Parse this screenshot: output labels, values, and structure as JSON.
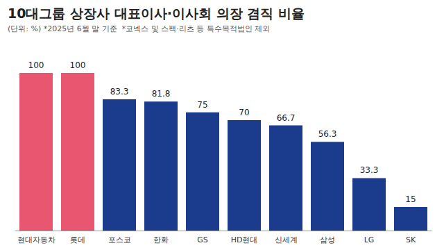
{
  "chart_data": {
    "type": "bar",
    "title": "10대그룹 상장사 대표이사·이사회 의장 겸직 비율",
    "subtitle": "(단위: %) *2025년 6월 말 기준  *코넥스 및 스팩·리츠 등 특수목적법인 제외",
    "categories": [
      "현대자동차",
      "롯데",
      "포스코",
      "한화",
      "GS",
      "HD현대",
      "신세계",
      "삼성",
      "LG",
      "SK"
    ],
    "values": [
      100,
      100,
      83.3,
      81.8,
      75,
      70,
      66.7,
      56.3,
      33.3,
      15
    ],
    "colors": [
      "#e8566f",
      "#e8566f",
      "#1b3c8c",
      "#1b3c8c",
      "#1b3c8c",
      "#1b3c8c",
      "#1b3c8c",
      "#1b3c8c",
      "#1b3c8c",
      "#1b3c8c"
    ],
    "ylim": [
      0,
      100
    ],
    "grid": false,
    "data_labels": true,
    "tick_labels": "x"
  }
}
